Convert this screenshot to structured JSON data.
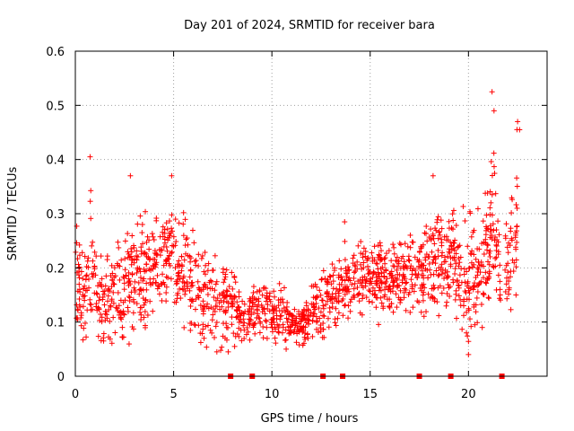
{
  "chart_data": {
    "type": "scatter",
    "title": "Day 201 of 2024, SRMTID for receiver bara",
    "xlabel": "GPS time / hours",
    "ylabel": "SRMTID / TECUs",
    "xlim": [
      0,
      24
    ],
    "ylim": [
      0,
      0.6
    ],
    "xticks": [
      0,
      5,
      10,
      15,
      20
    ],
    "yticks": [
      0,
      0.1,
      0.2,
      0.3,
      0.4,
      0.5,
      0.6
    ],
    "xtick_labels": [
      "0",
      "5",
      "10",
      "15",
      "20"
    ],
    "ytick_labels": [
      "0",
      "0.1",
      "0.2",
      "0.3",
      "0.4",
      "0.5",
      "0.6"
    ],
    "grid": true,
    "marker": "+",
    "series": [
      {
        "name": "SRMTID",
        "color": "#ff0000",
        "profile": [
          [
            0.0,
            0.17,
            0.06
          ],
          [
            0.5,
            0.15,
            0.06
          ],
          [
            0.8,
            0.22,
            0.08
          ],
          [
            1.2,
            0.13,
            0.04
          ],
          [
            2.0,
            0.15,
            0.05
          ],
          [
            3.0,
            0.19,
            0.06
          ],
          [
            4.0,
            0.21,
            0.06
          ],
          [
            4.7,
            0.23,
            0.06
          ],
          [
            5.5,
            0.2,
            0.06
          ],
          [
            6.5,
            0.14,
            0.05
          ],
          [
            7.5,
            0.15,
            0.05
          ],
          [
            8.5,
            0.11,
            0.03
          ],
          [
            9.5,
            0.13,
            0.03
          ],
          [
            10.5,
            0.11,
            0.03
          ],
          [
            11.3,
            0.09,
            0.02
          ],
          [
            12.0,
            0.12,
            0.03
          ],
          [
            13.0,
            0.15,
            0.04
          ],
          [
            14.0,
            0.18,
            0.04
          ],
          [
            15.0,
            0.19,
            0.04
          ],
          [
            16.0,
            0.17,
            0.04
          ],
          [
            17.0,
            0.19,
            0.04
          ],
          [
            18.0,
            0.2,
            0.06
          ],
          [
            19.0,
            0.22,
            0.06
          ],
          [
            20.0,
            0.18,
            0.07
          ],
          [
            20.8,
            0.22,
            0.06
          ],
          [
            21.2,
            0.3,
            0.08
          ],
          [
            21.6,
            0.2,
            0.05
          ],
          [
            22.0,
            0.18,
            0.05
          ],
          [
            22.5,
            0.3,
            0.09
          ]
        ],
        "peaks": [
          {
            "x": 0.75,
            "y": 0.405
          },
          {
            "x": 2.8,
            "y": 0.37
          },
          {
            "x": 4.9,
            "y": 0.37
          },
          {
            "x": 13.7,
            "y": 0.285
          },
          {
            "x": 18.2,
            "y": 0.37
          },
          {
            "x": 21.2,
            "y": 0.525
          },
          {
            "x": 21.3,
            "y": 0.49
          },
          {
            "x": 22.5,
            "y": 0.47
          },
          {
            "x": 22.6,
            "y": 0.455
          },
          {
            "x": 20.0,
            "y": 0.04
          },
          {
            "x": 7.2,
            "y": 0.045
          }
        ],
        "gaps": [
          [
            21.65,
            21.85
          ]
        ]
      },
      {
        "name": "markers on axis",
        "color": "#ff0000",
        "x": [
          7.9,
          9.0,
          12.6,
          13.6,
          17.5,
          19.1,
          21.7
        ]
      }
    ]
  }
}
